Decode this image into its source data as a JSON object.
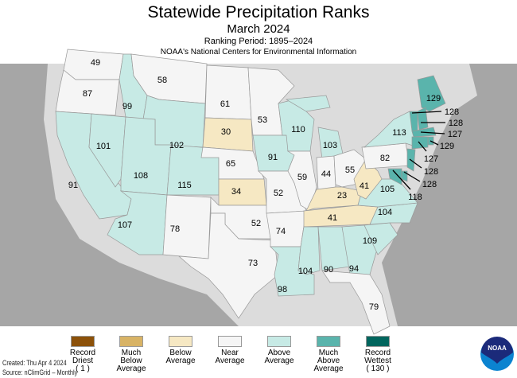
{
  "header": {
    "title": "Statewide Precipitation Ranks",
    "subtitle": "March 2024",
    "period": "Ranking Period: 1895–2024",
    "agency": "NOAA's National Centers for Environmental Information"
  },
  "colors": {
    "record_driest": "#8c510a",
    "much_below": "#d8b365",
    "below": "#f6e8c3",
    "near": "#f5f5f5",
    "above": "#c7eae5",
    "much_above": "#5ab4ac",
    "record_wettest": "#01665e",
    "ocean": "#a6a6a6",
    "land": "#dcdcdc"
  },
  "legend": [
    {
      "key": "record_driest",
      "lines": [
        "Record",
        "Driest",
        "( 1 )"
      ]
    },
    {
      "key": "much_below",
      "lines": [
        "Much",
        "Below",
        "Average"
      ]
    },
    {
      "key": "below",
      "lines": [
        "Below",
        "Average",
        ""
      ]
    },
    {
      "key": "near",
      "lines": [
        "Near",
        "Average",
        ""
      ]
    },
    {
      "key": "above",
      "lines": [
        "Above",
        "Average",
        ""
      ]
    },
    {
      "key": "much_above",
      "lines": [
        "Much",
        "Above",
        "Average"
      ]
    },
    {
      "key": "record_wettest",
      "lines": [
        "Record",
        "Wettest",
        "( 130 )"
      ]
    }
  ],
  "footer": {
    "created": "Created: Thu Apr  4 2024",
    "source": "Source: nClimGrid – Monthly"
  },
  "logo": "NOAA",
  "states": [
    {
      "id": "WA",
      "rank": "49",
      "cat": "near"
    },
    {
      "id": "OR",
      "rank": "87",
      "cat": "near"
    },
    {
      "id": "CA",
      "rank": "91",
      "cat": "above"
    },
    {
      "id": "NV",
      "rank": "101",
      "cat": "above"
    },
    {
      "id": "ID",
      "rank": "99",
      "cat": "above"
    },
    {
      "id": "MT",
      "rank": "58",
      "cat": "near"
    },
    {
      "id": "WY",
      "rank": "102",
      "cat": "above"
    },
    {
      "id": "UT",
      "rank": "108",
      "cat": "above"
    },
    {
      "id": "CO",
      "rank": "115",
      "cat": "above"
    },
    {
      "id": "AZ",
      "rank": "107",
      "cat": "above"
    },
    {
      "id": "NM",
      "rank": "78",
      "cat": "near"
    },
    {
      "id": "ND",
      "rank": "61",
      "cat": "near"
    },
    {
      "id": "SD",
      "rank": "30",
      "cat": "below"
    },
    {
      "id": "NE",
      "rank": "65",
      "cat": "near"
    },
    {
      "id": "KS",
      "rank": "34",
      "cat": "below"
    },
    {
      "id": "OK",
      "rank": "52",
      "cat": "near"
    },
    {
      "id": "TX",
      "rank": "73",
      "cat": "near"
    },
    {
      "id": "MN",
      "rank": "53",
      "cat": "near"
    },
    {
      "id": "IA",
      "rank": "91",
      "cat": "above"
    },
    {
      "id": "MO",
      "rank": "52",
      "cat": "near"
    },
    {
      "id": "AR",
      "rank": "74",
      "cat": "near"
    },
    {
      "id": "LA",
      "rank": "98",
      "cat": "above"
    },
    {
      "id": "WI",
      "rank": "110",
      "cat": "above"
    },
    {
      "id": "IL",
      "rank": "59",
      "cat": "near"
    },
    {
      "id": "MI",
      "rank": "103",
      "cat": "above"
    },
    {
      "id": "IN",
      "rank": "44",
      "cat": "near"
    },
    {
      "id": "OH",
      "rank": "55",
      "cat": "near"
    },
    {
      "id": "KY",
      "rank": "23",
      "cat": "below"
    },
    {
      "id": "TN",
      "rank": "41",
      "cat": "below"
    },
    {
      "id": "MS",
      "rank": "104",
      "cat": "above"
    },
    {
      "id": "AL",
      "rank": "90",
      "cat": "above"
    },
    {
      "id": "GA",
      "rank": "94",
      "cat": "above"
    },
    {
      "id": "FL",
      "rank": "79",
      "cat": "near"
    },
    {
      "id": "SC",
      "rank": "109",
      "cat": "above"
    },
    {
      "id": "NC",
      "rank": "104",
      "cat": "above"
    },
    {
      "id": "VA",
      "rank": "105",
      "cat": "above"
    },
    {
      "id": "WV",
      "rank": "41",
      "cat": "below"
    },
    {
      "id": "PA",
      "rank": "82",
      "cat": "near"
    },
    {
      "id": "NY",
      "rank": "113",
      "cat": "above"
    },
    {
      "id": "ME",
      "rank": "129",
      "cat": "much_above"
    },
    {
      "id": "VT",
      "rank": "128",
      "cat": "much_above"
    },
    {
      "id": "NH",
      "rank": "128",
      "cat": "much_above"
    },
    {
      "id": "MA",
      "rank": "127",
      "cat": "much_above"
    },
    {
      "id": "RI",
      "rank": "129",
      "cat": "much_above"
    },
    {
      "id": "CT",
      "rank": "127",
      "cat": "much_above"
    },
    {
      "id": "NJ",
      "rank": "128",
      "cat": "much_above"
    },
    {
      "id": "DE",
      "rank": "128",
      "cat": "much_above"
    },
    {
      "id": "MD",
      "rank": "118",
      "cat": "much_above"
    }
  ]
}
